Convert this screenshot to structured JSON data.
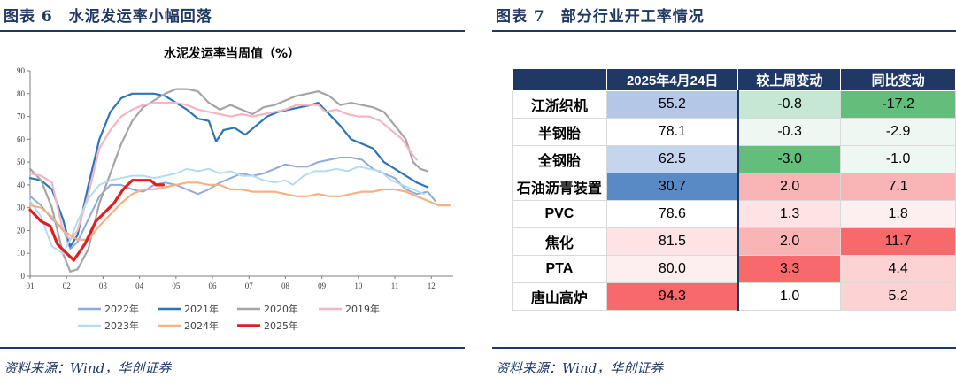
{
  "left": {
    "title": "图表 6　水泥发运率小幅回落",
    "source": "资料来源：Wind，华创证券"
  },
  "right": {
    "title": "图表 7　部分行业开工率情况",
    "source": "资料来源：Wind，华创证券",
    "table": {
      "columns": [
        "",
        "2025年4月24日",
        "较上周变动",
        "同比变动"
      ],
      "rows": [
        {
          "name": "江浙织机",
          "cells": [
            "55.2",
            "-0.8",
            "-17.2"
          ],
          "colors": [
            "#b4c7e7",
            "#c6e7d2",
            "#63be7b"
          ]
        },
        {
          "name": "半钢胎",
          "cells": [
            "78.1",
            "-0.3",
            "-2.9"
          ],
          "colors": [
            "#ffffff",
            "#eef7f1",
            "#eef7f1"
          ]
        },
        {
          "name": "全钢胎",
          "cells": [
            "62.5",
            "-3.0",
            "-1.0"
          ],
          "colors": [
            "#c5d5ee",
            "#63be7b",
            "#eef7f1"
          ]
        },
        {
          "name": "石油沥青装置",
          "cells": [
            "30.7",
            "2.0",
            "7.1"
          ],
          "colors": [
            "#5a8ac6",
            "#f9b4b6",
            "#f9b4b6"
          ]
        },
        {
          "name": "PVC",
          "cells": [
            "78.6",
            "1.3",
            "1.8"
          ],
          "colors": [
            "#ffffff",
            "#fde3e4",
            "#fdeff0"
          ]
        },
        {
          "name": "焦化",
          "cells": [
            "81.5",
            "2.0",
            "11.7"
          ],
          "colors": [
            "#fde3e4",
            "#f9b4b6",
            "#f8696b"
          ]
        },
        {
          "name": "PTA",
          "cells": [
            "80.0",
            "3.3",
            "4.4"
          ],
          "colors": [
            "#fdeff0",
            "#f8696b",
            "#fcd2d3"
          ]
        },
        {
          "name": "唐山高炉",
          "cells": [
            "94.3",
            "1.0",
            "5.2"
          ],
          "colors": [
            "#f8696b",
            "#ffffff",
            "#fcd2d3"
          ]
        }
      ]
    }
  },
  "chart_data": {
    "type": "line",
    "title": "水泥发运率当周值（%）",
    "x_ticks": [
      "01",
      "02",
      "03",
      "04",
      "05",
      "06",
      "07",
      "08",
      "09",
      "10",
      "11",
      "12"
    ],
    "ylim": [
      0,
      90
    ],
    "y_ticks": [
      0,
      10,
      20,
      30,
      40,
      50,
      60,
      70,
      80,
      90
    ],
    "grid": false,
    "legend_position": "bottom",
    "series": [
      {
        "name": "2022年",
        "color": "#8faadc",
        "width": 2,
        "points": [
          [
            1.0,
            35
          ],
          [
            1.3,
            31
          ],
          [
            1.6,
            25
          ],
          [
            1.9,
            21
          ],
          [
            2.1,
            12
          ],
          [
            2.3,
            15
          ],
          [
            2.6,
            25
          ],
          [
            2.9,
            35
          ],
          [
            3.2,
            40
          ],
          [
            3.5,
            40
          ],
          [
            3.8,
            38
          ],
          [
            4.1,
            37
          ],
          [
            4.4,
            40
          ],
          [
            4.7,
            41
          ],
          [
            5.0,
            40
          ],
          [
            5.3,
            38
          ],
          [
            5.6,
            36
          ],
          [
            5.9,
            38
          ],
          [
            6.2,
            41
          ],
          [
            6.5,
            43
          ],
          [
            6.8,
            45
          ],
          [
            7.1,
            44
          ],
          [
            7.4,
            45
          ],
          [
            7.7,
            47
          ],
          [
            8.0,
            49
          ],
          [
            8.3,
            48
          ],
          [
            8.6,
            48
          ],
          [
            8.9,
            50
          ],
          [
            9.2,
            51
          ],
          [
            9.5,
            52
          ],
          [
            9.8,
            52
          ],
          [
            10.1,
            51
          ],
          [
            10.4,
            47
          ],
          [
            10.7,
            45
          ],
          [
            11.0,
            43
          ],
          [
            11.3,
            38
          ],
          [
            11.6,
            36
          ],
          [
            11.9,
            37
          ],
          [
            12.1,
            33
          ]
        ]
      },
      {
        "name": "2021年",
        "color": "#2e75b6",
        "width": 2.2,
        "points": [
          [
            1.0,
            43
          ],
          [
            1.3,
            42
          ],
          [
            1.6,
            38
          ],
          [
            1.9,
            25
          ],
          [
            2.1,
            13
          ],
          [
            2.3,
            18
          ],
          [
            2.6,
            40
          ],
          [
            2.9,
            60
          ],
          [
            3.2,
            72
          ],
          [
            3.5,
            78
          ],
          [
            3.8,
            80
          ],
          [
            4.1,
            80
          ],
          [
            4.4,
            80
          ],
          [
            4.7,
            79
          ],
          [
            5.0,
            76
          ],
          [
            5.3,
            73
          ],
          [
            5.6,
            69
          ],
          [
            5.9,
            68
          ],
          [
            6.1,
            59
          ],
          [
            6.3,
            64
          ],
          [
            6.6,
            65
          ],
          [
            6.9,
            62
          ],
          [
            7.2,
            66
          ],
          [
            7.5,
            70
          ],
          [
            7.8,
            72
          ],
          [
            8.1,
            73
          ],
          [
            8.4,
            74
          ],
          [
            8.7,
            75
          ],
          [
            8.9,
            76
          ],
          [
            9.2,
            71
          ],
          [
            9.5,
            66
          ],
          [
            9.8,
            60
          ],
          [
            10.1,
            58
          ],
          [
            10.4,
            56
          ],
          [
            10.7,
            50
          ],
          [
            11.0,
            47
          ],
          [
            11.3,
            44
          ],
          [
            11.6,
            41
          ],
          [
            11.9,
            39
          ]
        ]
      },
      {
        "name": "2020年",
        "color": "#a5a5a5",
        "width": 2.2,
        "points": [
          [
            1.0,
            47
          ],
          [
            1.3,
            42
          ],
          [
            1.6,
            30
          ],
          [
            1.9,
            10
          ],
          [
            2.1,
            2
          ],
          [
            2.3,
            3
          ],
          [
            2.6,
            12
          ],
          [
            2.9,
            32
          ],
          [
            3.2,
            45
          ],
          [
            3.5,
            58
          ],
          [
            3.8,
            68
          ],
          [
            4.1,
            74
          ],
          [
            4.4,
            77
          ],
          [
            4.7,
            80
          ],
          [
            5.0,
            82
          ],
          [
            5.3,
            82
          ],
          [
            5.6,
            81
          ],
          [
            5.9,
            76
          ],
          [
            6.2,
            73
          ],
          [
            6.5,
            75
          ],
          [
            6.8,
            73
          ],
          [
            7.1,
            71
          ],
          [
            7.4,
            74
          ],
          [
            7.7,
            75
          ],
          [
            8.0,
            77
          ],
          [
            8.3,
            79
          ],
          [
            8.6,
            80
          ],
          [
            8.9,
            81
          ],
          [
            9.2,
            79
          ],
          [
            9.5,
            75
          ],
          [
            9.8,
            76
          ],
          [
            10.1,
            75
          ],
          [
            10.4,
            74
          ],
          [
            10.7,
            72
          ],
          [
            11.0,
            66
          ],
          [
            11.3,
            60
          ],
          [
            11.5,
            50
          ],
          [
            11.7,
            47
          ],
          [
            11.9,
            46
          ]
        ]
      },
      {
        "name": "2019年",
        "color": "#f4b6c2",
        "width": 2.2,
        "points": [
          [
            1.0,
            45
          ],
          [
            1.3,
            44
          ],
          [
            1.6,
            41
          ],
          [
            1.9,
            20
          ],
          [
            2.1,
            16
          ],
          [
            2.3,
            20
          ],
          [
            2.6,
            36
          ],
          [
            2.9,
            56
          ],
          [
            3.2,
            64
          ],
          [
            3.5,
            70
          ],
          [
            3.8,
            73
          ],
          [
            4.1,
            75
          ],
          [
            4.4,
            76
          ],
          [
            4.7,
            76
          ],
          [
            5.0,
            76
          ],
          [
            5.3,
            75
          ],
          [
            5.6,
            73
          ],
          [
            5.9,
            72
          ],
          [
            6.2,
            71
          ],
          [
            6.5,
            70
          ],
          [
            6.8,
            71
          ],
          [
            7.1,
            70
          ],
          [
            7.4,
            71
          ],
          [
            7.7,
            72
          ],
          [
            8.0,
            73
          ],
          [
            8.3,
            75
          ],
          [
            8.6,
            75
          ],
          [
            8.9,
            75
          ],
          [
            9.1,
            72
          ],
          [
            9.4,
            73
          ],
          [
            9.7,
            71
          ],
          [
            10.0,
            70
          ],
          [
            10.3,
            70
          ],
          [
            10.6,
            68
          ],
          [
            10.9,
            64
          ],
          [
            11.2,
            60
          ],
          [
            11.4,
            55
          ],
          [
            11.6,
            51
          ]
        ]
      },
      {
        "name": "2023年",
        "color": "#b4dcf0",
        "width": 2,
        "points": [
          [
            1.0,
            33
          ],
          [
            1.3,
            26
          ],
          [
            1.6,
            13
          ],
          [
            1.9,
            10
          ],
          [
            2.1,
            16
          ],
          [
            2.3,
            24
          ],
          [
            2.6,
            34
          ],
          [
            2.9,
            40
          ],
          [
            3.2,
            42
          ],
          [
            3.5,
            43
          ],
          [
            3.8,
            44
          ],
          [
            4.1,
            44
          ],
          [
            4.4,
            43
          ],
          [
            4.7,
            44
          ],
          [
            5.0,
            45
          ],
          [
            5.3,
            47
          ],
          [
            5.6,
            46
          ],
          [
            5.9,
            47
          ],
          [
            6.2,
            45
          ],
          [
            6.5,
            46
          ],
          [
            6.8,
            44
          ],
          [
            7.1,
            44
          ],
          [
            7.4,
            42
          ],
          [
            7.7,
            41
          ],
          [
            8.0,
            42
          ],
          [
            8.2,
            40
          ],
          [
            8.5,
            44
          ],
          [
            8.8,
            46
          ],
          [
            9.1,
            46
          ],
          [
            9.4,
            47
          ],
          [
            9.7,
            46
          ],
          [
            10.0,
            48
          ],
          [
            10.3,
            47
          ],
          [
            10.6,
            46
          ],
          [
            10.9,
            42
          ],
          [
            11.2,
            40
          ],
          [
            11.5,
            38
          ],
          [
            11.8,
            36
          ]
        ]
      },
      {
        "name": "2024年",
        "color": "#f4b183",
        "width": 2.2,
        "points": [
          [
            1.0,
            31
          ],
          [
            1.3,
            30
          ],
          [
            1.6,
            26
          ],
          [
            1.9,
            20
          ],
          [
            2.1,
            18
          ],
          [
            2.3,
            16
          ],
          [
            2.6,
            16
          ],
          [
            2.9,
            22
          ],
          [
            3.2,
            27
          ],
          [
            3.5,
            32
          ],
          [
            3.8,
            36
          ],
          [
            4.1,
            38
          ],
          [
            4.4,
            38
          ],
          [
            4.7,
            39
          ],
          [
            5.0,
            40
          ],
          [
            5.3,
            41
          ],
          [
            5.6,
            41
          ],
          [
            5.9,
            40
          ],
          [
            6.2,
            40
          ],
          [
            6.5,
            38
          ],
          [
            6.8,
            38
          ],
          [
            7.1,
            37
          ],
          [
            7.4,
            37
          ],
          [
            7.7,
            37
          ],
          [
            8.0,
            36
          ],
          [
            8.3,
            35
          ],
          [
            8.6,
            35
          ],
          [
            8.9,
            36
          ],
          [
            9.2,
            35
          ],
          [
            9.5,
            35
          ],
          [
            9.8,
            36
          ],
          [
            10.1,
            37
          ],
          [
            10.4,
            37
          ],
          [
            10.7,
            38
          ],
          [
            11.0,
            38
          ],
          [
            11.3,
            37
          ],
          [
            11.6,
            35
          ],
          [
            11.9,
            33
          ],
          [
            12.2,
            31
          ],
          [
            12.5,
            31
          ]
        ]
      },
      {
        "name": "2025年",
        "color": "#e02020",
        "width": 3.2,
        "points": [
          [
            1.0,
            29
          ],
          [
            1.3,
            24
          ],
          [
            1.55,
            22
          ],
          [
            1.75,
            14
          ],
          [
            2.0,
            10
          ],
          [
            2.2,
            7
          ],
          [
            2.5,
            14
          ],
          [
            2.8,
            24
          ],
          [
            3.05,
            28
          ],
          [
            3.3,
            32
          ],
          [
            3.55,
            38
          ],
          [
            3.8,
            42
          ],
          [
            4.05,
            42
          ],
          [
            4.3,
            42
          ],
          [
            4.45,
            40
          ],
          [
            4.65,
            40
          ]
        ]
      }
    ]
  }
}
